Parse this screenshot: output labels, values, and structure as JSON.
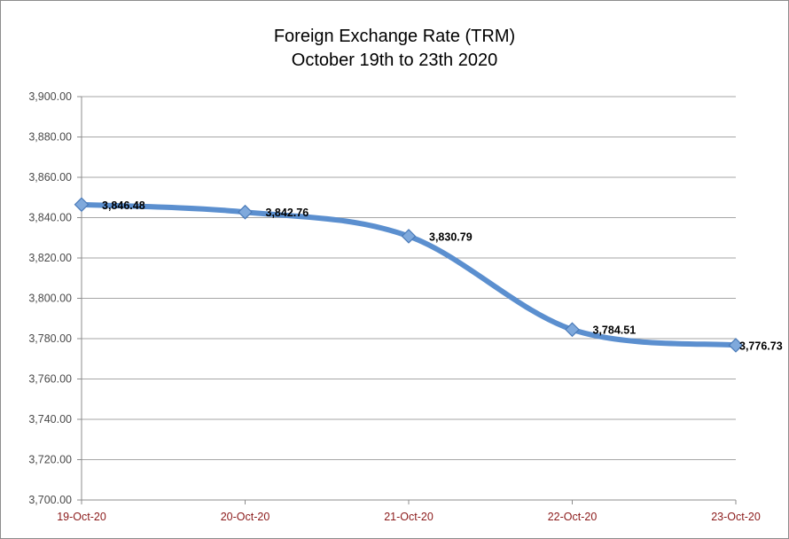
{
  "chart_data": {
    "type": "line",
    "title_lines": [
      "Foreign Exchange Rate (TRM)",
      "October 19th to 23th 2020"
    ],
    "xlabel": "",
    "ylabel": "",
    "categories": [
      "19-Oct-20",
      "20-Oct-20",
      "21-Oct-20",
      "22-Oct-20",
      "23-Oct-20"
    ],
    "values": [
      3846.48,
      3842.76,
      3830.79,
      3784.51,
      3776.73
    ],
    "data_labels": [
      "3,846.48",
      "3,842.76",
      "3,830.79",
      "3,784.51",
      "3,776.73"
    ],
    "ylim": [
      3700,
      3900
    ],
    "yticks": [
      3700,
      3720,
      3740,
      3760,
      3780,
      3800,
      3820,
      3840,
      3860,
      3880,
      3900
    ],
    "ytick_labels": [
      "3,700.00",
      "3,720.00",
      "3,740.00",
      "3,760.00",
      "3,780.00",
      "3,800.00",
      "3,820.00",
      "3,840.00",
      "3,860.00",
      "3,880.00",
      "3,900.00"
    ],
    "grid": true,
    "smooth": true,
    "marker": "diamond",
    "legend": "none",
    "colors": {
      "line": "#5b8fcf",
      "marker": "#7fa9dc",
      "marker_edge": "#4a7ab8",
      "xtick_text": "#8b1a1a"
    }
  }
}
